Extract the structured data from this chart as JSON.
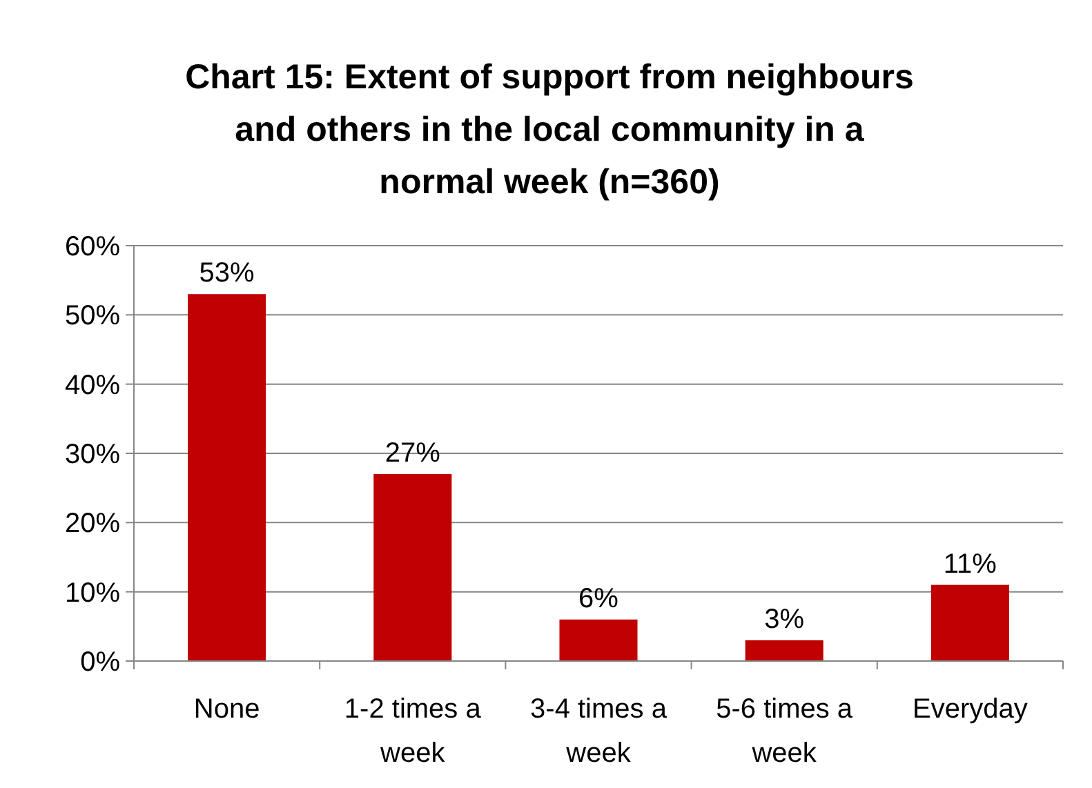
{
  "chart_data": {
    "type": "bar",
    "title": "Chart 15: Extent of support from neighbours and others in the local community in a normal week (n=360)",
    "categories": [
      "None",
      "1-2 times a week",
      "3-4 times a week",
      "5-6 times a week",
      "Everyday"
    ],
    "values": [
      53,
      27,
      6,
      3,
      11
    ],
    "value_labels": [
      "53%",
      "27%",
      "6%",
      "3%",
      "11%"
    ],
    "color": "#c00000",
    "ylim": [
      0,
      60
    ],
    "yticks": [
      {
        "value": 0,
        "label": "0%"
      },
      {
        "value": 10,
        "label": "10%"
      },
      {
        "value": 20,
        "label": "20%"
      },
      {
        "value": 30,
        "label": "30%"
      },
      {
        "value": 40,
        "label": "40%"
      },
      {
        "value": 50,
        "label": "50%"
      },
      {
        "value": 60,
        "label": "60%"
      }
    ],
    "grid": "y"
  }
}
